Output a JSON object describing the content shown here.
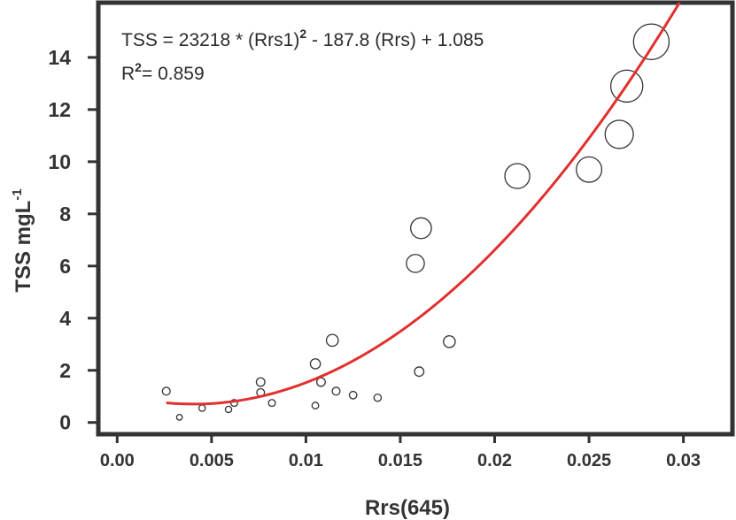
{
  "chart_data": {
    "type": "scatter",
    "xlabel": "Rrs(645)",
    "ylabel": {
      "main": "TSS mgL",
      "sup": "-1"
    },
    "xlim": [
      -0.001,
      0.0326
    ],
    "ylim": [
      -0.45,
      16.1
    ],
    "x_ticks": [
      0.0,
      0.005,
      0.01,
      0.015,
      0.02,
      0.025,
      0.03
    ],
    "x_tick_labels": [
      "0.00",
      "0.005",
      "0.01",
      "0.015",
      "0.02",
      "0.025",
      "0.03"
    ],
    "y_ticks": [
      0,
      2,
      4,
      6,
      8,
      10,
      12,
      14
    ],
    "y_tick_labels": [
      "0",
      "2",
      "4",
      "6",
      "8",
      "10",
      "12",
      "14"
    ],
    "grid": false,
    "point_size": "proportional to TSS",
    "colors": {
      "fit_line": "#e0302f",
      "markers": "#333333",
      "axes": "#333333"
    },
    "equation": {
      "part1": "TSS = 23218 * (Rrs1)",
      "sup": "2",
      "part2": " - 187.8 (Rrs) + 1.085"
    },
    "r_squared": {
      "label": "R",
      "sup": "2",
      "value": "= 0.859"
    },
    "fit": {
      "a": 23218,
      "b": -187.8,
      "c": 1.085,
      "x_range": [
        0.0026,
        0.0298
      ]
    },
    "points": [
      {
        "x": 0.0026,
        "y": 1.2
      },
      {
        "x": 0.0033,
        "y": 0.2
      },
      {
        "x": 0.0045,
        "y": 0.55
      },
      {
        "x": 0.0059,
        "y": 0.5
      },
      {
        "x": 0.0062,
        "y": 0.75
      },
      {
        "x": 0.0076,
        "y": 1.55
      },
      {
        "x": 0.0076,
        "y": 1.15
      },
      {
        "x": 0.0082,
        "y": 0.75
      },
      {
        "x": 0.0105,
        "y": 0.65
      },
      {
        "x": 0.0105,
        "y": 2.25
      },
      {
        "x": 0.0108,
        "y": 1.55
      },
      {
        "x": 0.0114,
        "y": 3.15
      },
      {
        "x": 0.0116,
        "y": 1.2
      },
      {
        "x": 0.0125,
        "y": 1.05
      },
      {
        "x": 0.0138,
        "y": 0.95
      },
      {
        "x": 0.0158,
        "y": 6.1
      },
      {
        "x": 0.016,
        "y": 1.95
      },
      {
        "x": 0.0161,
        "y": 7.45
      },
      {
        "x": 0.0176,
        "y": 3.1
      },
      {
        "x": 0.0212,
        "y": 9.45
      },
      {
        "x": 0.025,
        "y": 9.7
      },
      {
        "x": 0.0266,
        "y": 11.05
      },
      {
        "x": 0.027,
        "y": 12.9
      },
      {
        "x": 0.0283,
        "y": 14.6
      }
    ]
  }
}
